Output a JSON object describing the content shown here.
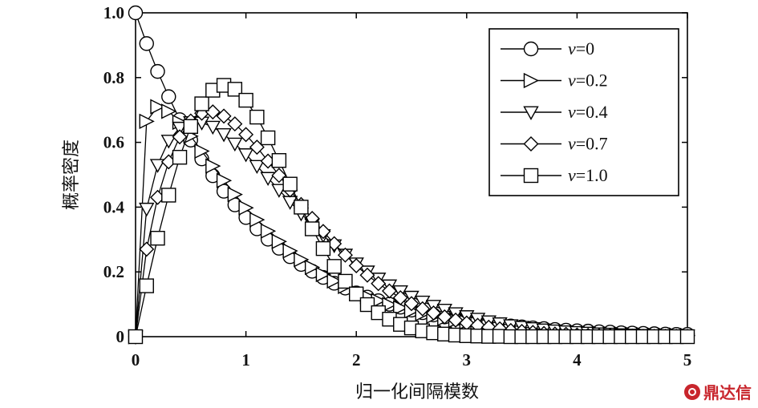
{
  "chart_data": {
    "type": "scatter",
    "title": "",
    "xlabel": "归一化间隔模数",
    "ylabel": "概率密度",
    "xlim": [
      0,
      5
    ],
    "ylim": [
      0,
      1.0
    ],
    "x_ticks": [
      "0",
      "1",
      "2",
      "3",
      "4",
      "5"
    ],
    "y_ticks": [
      "0",
      "0.2",
      "0.4",
      "0.6",
      "0.8",
      "1.0"
    ],
    "grid": false,
    "legend_position": "top-right",
    "series": [
      {
        "name": "ν=0",
        "nu": "0",
        "marker": "circle",
        "x": [
          0,
          0.1,
          0.2,
          0.3,
          0.4,
          0.5,
          0.6,
          0.7,
          0.8,
          0.9,
          1.0,
          1.1,
          1.2,
          1.3,
          1.4,
          1.5,
          1.6,
          1.7,
          1.8,
          1.9,
          2.0,
          2.1,
          2.2,
          2.3,
          2.4,
          2.5,
          2.6,
          2.7,
          2.8,
          2.9,
          3.0,
          3.1,
          3.2,
          3.3,
          3.4,
          3.5,
          3.6,
          3.7,
          3.8,
          3.9,
          4.0,
          4.1,
          4.2,
          4.3,
          4.4,
          4.5,
          4.6,
          4.7,
          4.8,
          4.9,
          5.0
        ],
        "y": [
          1.0,
          0.905,
          0.819,
          0.741,
          0.67,
          0.607,
          0.549,
          0.497,
          0.449,
          0.407,
          0.368,
          0.333,
          0.301,
          0.273,
          0.247,
          0.223,
          0.202,
          0.183,
          0.165,
          0.15,
          0.135,
          0.122,
          0.111,
          0.1,
          0.091,
          0.082,
          0.074,
          0.067,
          0.061,
          0.055,
          0.05,
          0.045,
          0.041,
          0.037,
          0.033,
          0.03,
          0.027,
          0.025,
          0.022,
          0.02,
          0.018,
          0.017,
          0.015,
          0.014,
          0.012,
          0.011,
          0.01,
          0.009,
          0.008,
          0.007,
          0.007
        ]
      },
      {
        "name": "ν=0.2",
        "nu": "0.2",
        "marker": "triangle-right",
        "x": [
          0,
          0.1,
          0.2,
          0.3,
          0.4,
          0.5,
          0.6,
          0.7,
          0.8,
          0.9,
          1.0,
          1.1,
          1.2,
          1.3,
          1.4,
          1.5,
          1.6,
          1.7,
          1.8,
          1.9,
          2.0,
          2.1,
          2.2,
          2.3,
          2.4,
          2.5,
          2.6,
          2.7,
          2.8,
          2.9,
          3.0,
          3.1,
          3.2,
          3.3,
          3.4,
          3.5,
          3.6,
          3.7,
          3.8,
          3.9,
          4.0,
          4.1,
          4.2,
          4.3,
          4.4,
          4.5,
          4.6,
          4.7,
          4.8,
          4.9,
          5.0
        ],
        "y": [
          0,
          0.665,
          0.71,
          0.696,
          0.662,
          0.619,
          0.573,
          0.527,
          0.482,
          0.439,
          0.398,
          0.361,
          0.326,
          0.294,
          0.265,
          0.238,
          0.214,
          0.192,
          0.172,
          0.155,
          0.139,
          0.124,
          0.111,
          0.099,
          0.089,
          0.079,
          0.071,
          0.063,
          0.056,
          0.05,
          0.045,
          0.04,
          0.036,
          0.032,
          0.028,
          0.025,
          0.022,
          0.02,
          0.018,
          0.016,
          0.014,
          0.012,
          0.011,
          0.01,
          0.009,
          0.008,
          0.007,
          0.006,
          0.005,
          0.005,
          0.004
        ]
      },
      {
        "name": "ν=0.4",
        "nu": "0.4",
        "marker": "triangle-down",
        "x": [
          0,
          0.1,
          0.2,
          0.3,
          0.4,
          0.5,
          0.6,
          0.7,
          0.8,
          0.9,
          1.0,
          1.1,
          1.2,
          1.3,
          1.4,
          1.5,
          1.6,
          1.7,
          1.8,
          1.9,
          2.0,
          2.1,
          2.2,
          2.3,
          2.4,
          2.5,
          2.6,
          2.7,
          2.8,
          2.9,
          3.0,
          3.1,
          3.2,
          3.3,
          3.4,
          3.5,
          3.6,
          3.7,
          3.8,
          3.9,
          4.0,
          4.1,
          4.2,
          4.3,
          4.4,
          4.5,
          4.6,
          4.7,
          4.8,
          4.9,
          5.0
        ],
        "y": [
          0,
          0.395,
          0.53,
          0.605,
          0.645,
          0.662,
          0.661,
          0.648,
          0.625,
          0.596,
          0.563,
          0.527,
          0.49,
          0.453,
          0.416,
          0.38,
          0.346,
          0.313,
          0.282,
          0.253,
          0.226,
          0.201,
          0.179,
          0.158,
          0.14,
          0.123,
          0.108,
          0.095,
          0.083,
          0.072,
          0.063,
          0.055,
          0.047,
          0.041,
          0.035,
          0.03,
          0.026,
          0.022,
          0.019,
          0.016,
          0.014,
          0.012,
          0.01,
          0.009,
          0.007,
          0.006,
          0.005,
          0.004,
          0.004,
          0.003,
          0.003
        ]
      },
      {
        "name": "ν=0.7",
        "nu": "0.7",
        "marker": "diamond",
        "x": [
          0,
          0.1,
          0.2,
          0.3,
          0.4,
          0.5,
          0.6,
          0.7,
          0.8,
          0.9,
          1.0,
          1.1,
          1.2,
          1.3,
          1.4,
          1.5,
          1.6,
          1.7,
          1.8,
          1.9,
          2.0,
          2.1,
          2.2,
          2.3,
          2.4,
          2.5,
          2.6,
          2.7,
          2.8,
          2.9,
          3.0,
          3.1,
          3.2,
          3.3,
          3.4,
          3.5,
          3.6,
          3.7,
          3.8,
          3.9,
          4.0,
          4.1,
          4.2,
          4.3,
          4.4,
          4.5,
          4.6,
          4.7,
          4.8,
          4.9,
          5.0
        ],
        "y": [
          0,
          0.27,
          0.43,
          0.54,
          0.617,
          0.666,
          0.69,
          0.694,
          0.681,
          0.657,
          0.624,
          0.585,
          0.542,
          0.498,
          0.453,
          0.408,
          0.365,
          0.325,
          0.287,
          0.252,
          0.219,
          0.19,
          0.164,
          0.141,
          0.12,
          0.102,
          0.086,
          0.073,
          0.061,
          0.051,
          0.042,
          0.035,
          0.029,
          0.024,
          0.019,
          0.016,
          0.013,
          0.01,
          0.008,
          0.007,
          0.005,
          0.004,
          0.003,
          0.003,
          0.002,
          0.002,
          0.001,
          0.001,
          0.001,
          0.001,
          0.001
        ]
      },
      {
        "name": "ν=1.0",
        "nu": "1.0",
        "marker": "square",
        "x": [
          0,
          0.1,
          0.2,
          0.3,
          0.4,
          0.5,
          0.6,
          0.7,
          0.8,
          0.9,
          1.0,
          1.1,
          1.2,
          1.3,
          1.4,
          1.5,
          1.6,
          1.7,
          1.8,
          1.9,
          2.0,
          2.1,
          2.2,
          2.3,
          2.4,
          2.5,
          2.6,
          2.7,
          2.8,
          2.9,
          3.0,
          3.1,
          3.2,
          3.3,
          3.4,
          3.5,
          3.6,
          3.7,
          3.8,
          3.9,
          4.0,
          4.1,
          4.2,
          4.3,
          4.4,
          4.5,
          4.6,
          4.7,
          4.8,
          4.9,
          5.0
        ],
        "y": [
          0,
          0.157,
          0.304,
          0.437,
          0.554,
          0.649,
          0.719,
          0.761,
          0.776,
          0.764,
          0.73,
          0.678,
          0.614,
          0.544,
          0.471,
          0.4,
          0.333,
          0.272,
          0.217,
          0.171,
          0.132,
          0.099,
          0.074,
          0.054,
          0.038,
          0.027,
          0.018,
          0.012,
          0.008,
          0.005,
          0.003,
          0.002,
          0.001,
          0.001,
          0,
          0,
          0,
          0,
          0,
          0,
          0,
          0,
          0,
          0,
          0,
          0,
          0,
          0,
          0,
          0,
          0
        ]
      }
    ]
  },
  "watermark": {
    "text": "鼎达信",
    "color": "#c8252c"
  }
}
